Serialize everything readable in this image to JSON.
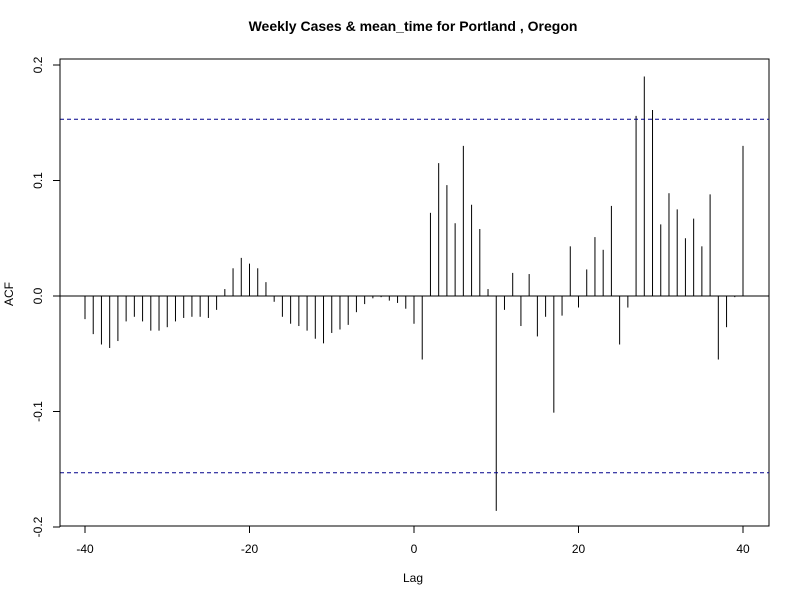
{
  "chart_data": {
    "type": "bar",
    "title": "Weekly Cases & mean_time for Portland , Oregon",
    "xlabel": "Lag",
    "ylabel": "ACF",
    "xlim": [
      -40,
      40
    ],
    "ylim": [
      -0.2,
      0.2
    ],
    "x_ticks": [
      -40,
      -20,
      0,
      20,
      40
    ],
    "y_ticks": [
      -0.2,
      -0.1,
      0.0,
      0.1,
      0.2
    ],
    "x_tick_labels": [
      "-40",
      "-20",
      "0",
      "20",
      "40"
    ],
    "y_tick_labels": [
      "-0.2",
      "-0.1",
      "0.0",
      "0.1",
      "0.2"
    ],
    "confidence_bound": 0.153,
    "colors": {
      "bars": "#000000",
      "confidence": "#00008b",
      "zero_line": "#000000"
    },
    "series": [
      {
        "lags": [
          -40,
          -39,
          -38,
          -37,
          -36,
          -35,
          -34,
          -33,
          -32,
          -31,
          -30,
          -29,
          -28,
          -27,
          -26,
          -25,
          -24,
          -23,
          -22,
          -21,
          -20,
          -19,
          -18,
          -17,
          -16,
          -15,
          -14,
          -13,
          -12,
          -11,
          -10,
          -9,
          -8,
          -7,
          -6,
          -5,
          -4,
          -3,
          -2,
          -1,
          0,
          1,
          2,
          3,
          4,
          5,
          6,
          7,
          8,
          9,
          10,
          11,
          12,
          13,
          14,
          15,
          16,
          17,
          18,
          19,
          20,
          21,
          22,
          23,
          24,
          25,
          26,
          27,
          28,
          29,
          30,
          31,
          32,
          33,
          34,
          35,
          36,
          37,
          38,
          39,
          40
        ],
        "values": [
          -0.02,
          -0.033,
          -0.042,
          -0.045,
          -0.039,
          -0.022,
          -0.018,
          -0.022,
          -0.03,
          -0.03,
          -0.027,
          -0.022,
          -0.019,
          -0.018,
          -0.018,
          -0.019,
          -0.012,
          0.006,
          0.024,
          0.033,
          0.028,
          0.024,
          0.012,
          -0.005,
          -0.018,
          -0.024,
          -0.026,
          -0.03,
          -0.037,
          -0.041,
          -0.032,
          -0.029,
          -0.025,
          -0.014,
          -0.007,
          -0.002,
          -0.001,
          -0.004,
          -0.006,
          -0.011,
          -0.024,
          -0.055,
          0.072,
          0.115,
          0.096,
          0.063,
          0.13,
          0.079,
          0.058,
          0.006,
          -0.186,
          -0.012,
          0.02,
          -0.026,
          0.019,
          -0.035,
          -0.018,
          -0.101,
          -0.017,
          0.043,
          -0.01,
          0.023,
          0.051,
          0.04,
          0.078,
          -0.042,
          -0.01,
          0.156,
          0.19,
          0.161,
          0.062,
          0.089,
          0.075,
          0.05,
          0.067,
          0.043,
          0.088,
          -0.055,
          -0.027,
          -0.001,
          0.13
        ]
      }
    ]
  }
}
